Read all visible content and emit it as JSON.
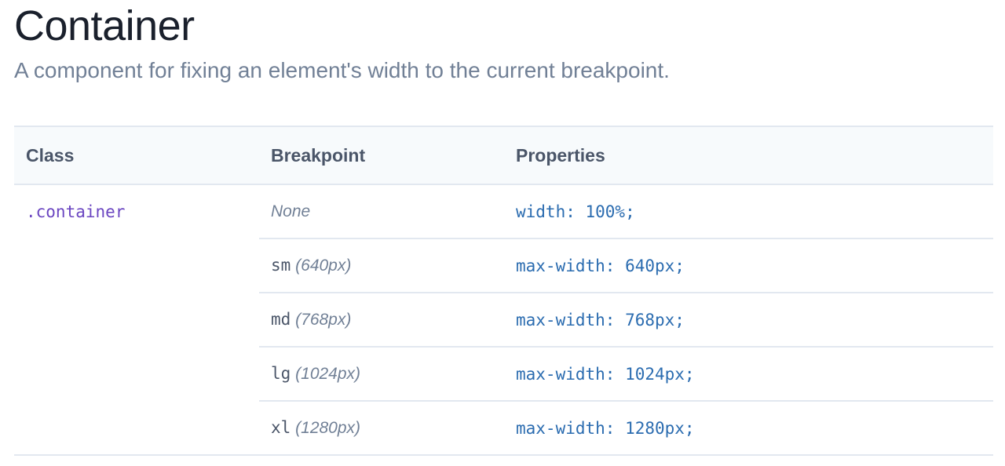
{
  "title": "Container",
  "subtitle": "A component for fixing an element's width to the current breakpoint.",
  "table": {
    "headers": [
      "Class",
      "Breakpoint",
      "Properties"
    ],
    "class_name": ".container",
    "rows": [
      {
        "prefix": "",
        "breakpoint": "None",
        "property": "width: 100%;"
      },
      {
        "prefix": "sm",
        "breakpoint": "(640px)",
        "property": "max-width: 640px;"
      },
      {
        "prefix": "md",
        "breakpoint": "(768px)",
        "property": "max-width: 768px;"
      },
      {
        "prefix": "lg",
        "breakpoint": "(1024px)",
        "property": "max-width: 1024px;"
      },
      {
        "prefix": "xl",
        "breakpoint": "(1280px)",
        "property": "max-width: 1280px;"
      }
    ]
  }
}
